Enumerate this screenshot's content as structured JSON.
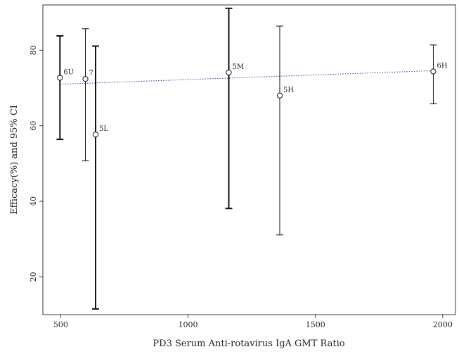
{
  "chart_data": {
    "type": "scatter",
    "title": "",
    "xlabel": "PD3 Serum Anti-rotavirus IgA GMT Ratio",
    "ylabel": "Efficacy(%) and 95% CI",
    "xlim": [
      430,
      2050
    ],
    "ylim": [
      10,
      92
    ],
    "xticks": [
      500,
      1000,
      1500,
      2000
    ],
    "yticks": [
      20,
      40,
      60,
      80
    ],
    "grid": false,
    "points": [
      {
        "label": "6U",
        "x": 497,
        "y": 72.7,
        "lo": 56.4,
        "hi": 83.8,
        "bold": true
      },
      {
        "label": "7",
        "x": 597,
        "y": 72.4,
        "lo": 50.7,
        "hi": 85.7,
        "bold": false
      },
      {
        "label": "5L",
        "x": 637,
        "y": 57.7,
        "lo": 11.5,
        "hi": 81.1,
        "bold": true
      },
      {
        "label": "5M",
        "x": 1160,
        "y": 74.1,
        "lo": 38.1,
        "hi": 91.1,
        "bold": true
      },
      {
        "label": "5H",
        "x": 1360,
        "y": 68.0,
        "lo": 31.1,
        "hi": 86.4,
        "bold": false
      },
      {
        "label": "6H",
        "x": 1963,
        "y": 74.4,
        "lo": 65.8,
        "hi": 81.4,
        "bold": false
      }
    ],
    "trendline": {
      "x": [
        497,
        1963
      ],
      "y": [
        71.0,
        74.6
      ],
      "style": "dotted",
      "color": "#3a3aa8"
    }
  }
}
